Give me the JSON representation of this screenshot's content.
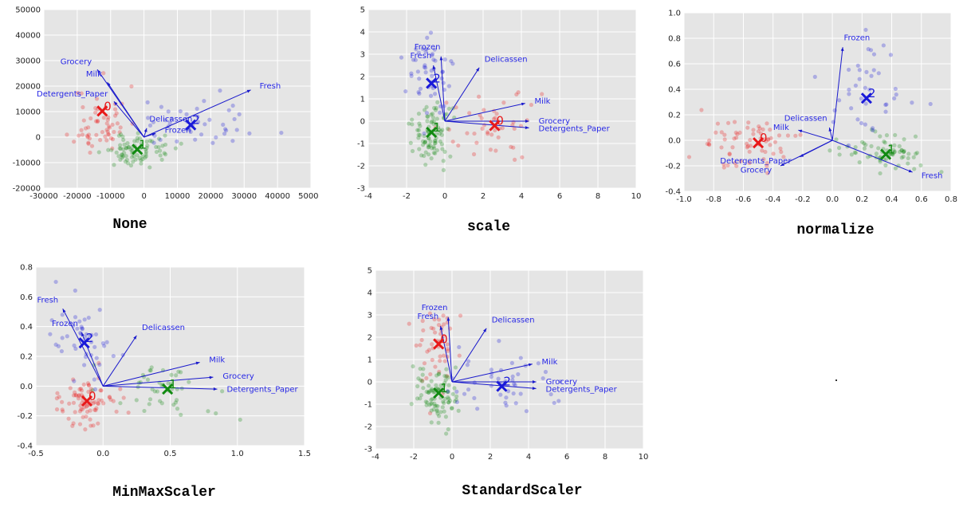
{
  "colors": {
    "cluster0": "#e8191a",
    "cluster1": "#118a11",
    "cluster2": "#1919d9",
    "arrow": "#1919cc",
    "plot_bg": "#e5e5e5"
  },
  "chart_data": [
    {
      "type": "scatter",
      "title": "None",
      "xlim": [
        -30000,
        50000
      ],
      "ylim": [
        -20000,
        50000
      ],
      "xticks": [
        -30000,
        -20000,
        -10000,
        0,
        10000,
        20000,
        30000,
        40000,
        50000
      ],
      "yticks": [
        -20000,
        -10000,
        0,
        10000,
        20000,
        30000,
        40000,
        50000
      ],
      "centers": [
        {
          "label": "0",
          "x": -12500,
          "y": 10200
        },
        {
          "label": "1",
          "x": -2000,
          "y": -4800
        },
        {
          "label": "2",
          "x": 14000,
          "y": 4800
        }
      ],
      "features": [
        {
          "name": "Grocery",
          "x": -14000,
          "y": 26500
        },
        {
          "name": "Milk",
          "x": -11000,
          "y": 21500
        },
        {
          "name": "Detergents_Paper",
          "x": -9000,
          "y": 14000
        },
        {
          "name": "Delicassen",
          "x": 800,
          "y": 3500
        },
        {
          "name": "Frozen",
          "x": 3500,
          "y": 1500
        },
        {
          "name": "Fresh",
          "x": 32000,
          "y": 18500
        }
      ],
      "clusters": [
        {
          "id": "0",
          "cx": -13000,
          "cy": 6000,
          "sx": 4000,
          "sy": 7000,
          "n": 60
        },
        {
          "id": "1",
          "cx": -2000,
          "cy": -5000,
          "sx": 5000,
          "sy": 3000,
          "n": 80
        },
        {
          "id": "2",
          "cx": 14000,
          "cy": 4000,
          "sx": 9000,
          "sy": 4500,
          "n": 45
        }
      ]
    },
    {
      "type": "scatter",
      "title": "scale",
      "xlim": [
        -4,
        10
      ],
      "ylim": [
        -3,
        5
      ],
      "xticks": [
        -4,
        -2,
        0,
        2,
        4,
        6,
        8,
        10
      ],
      "yticks": [
        -3,
        -2,
        -1,
        0,
        1,
        2,
        3,
        4,
        5
      ],
      "centers": [
        {
          "label": "0",
          "x": 2.6,
          "y": -0.2
        },
        {
          "label": "1",
          "x": -0.7,
          "y": -0.5
        },
        {
          "label": "2",
          "x": -0.7,
          "y": 1.7
        }
      ],
      "features": [
        {
          "name": "Fresh",
          "x": -0.6,
          "y": 2.5
        },
        {
          "name": "Frozen",
          "x": -0.2,
          "y": 2.9
        },
        {
          "name": "Delicassen",
          "x": 1.8,
          "y": 2.4
        },
        {
          "name": "Milk",
          "x": 4.2,
          "y": 0.8
        },
        {
          "name": "Grocery",
          "x": 4.4,
          "y": 0.0
        },
        {
          "name": "Detergents_Paper",
          "x": 4.4,
          "y": -0.3
        }
      ],
      "clusters": [
        {
          "id": "0",
          "cx": 2.5,
          "cy": -0.3,
          "sx": 1.4,
          "sy": 0.8,
          "n": 45
        },
        {
          "id": "1",
          "cx": -0.7,
          "cy": -0.6,
          "sx": 0.6,
          "sy": 0.6,
          "n": 90
        },
        {
          "id": "2",
          "cx": -0.8,
          "cy": 1.8,
          "sx": 0.6,
          "sy": 1.0,
          "n": 50
        }
      ]
    },
    {
      "type": "scatter",
      "title": "normalize",
      "xlim": [
        -1.0,
        0.8
      ],
      "ylim": [
        -0.4,
        1.0
      ],
      "xticks": [
        -1.0,
        -0.8,
        -0.6,
        -0.4,
        -0.2,
        0.0,
        0.2,
        0.4,
        0.6,
        0.8
      ],
      "yticks": [
        -0.4,
        -0.2,
        0.0,
        0.2,
        0.4,
        0.6,
        0.8,
        1.0
      ],
      "centers": [
        {
          "label": "0",
          "x": -0.5,
          "y": -0.02
        },
        {
          "label": "1",
          "x": 0.36,
          "y": -0.11
        },
        {
          "label": "2",
          "x": 0.23,
          "y": 0.33
        }
      ],
      "features": [
        {
          "name": "Frozen",
          "x": 0.07,
          "y": 0.73
        },
        {
          "name": "Milk",
          "x": -0.23,
          "y": 0.08
        },
        {
          "name": "Delicassen",
          "x": -0.02,
          "y": 0.1
        },
        {
          "name": "Grocery",
          "x": -0.35,
          "y": -0.2
        },
        {
          "name": "Detergents_Paper",
          "x": -0.22,
          "y": -0.13
        },
        {
          "name": "Fresh",
          "x": 0.54,
          "y": -0.25
        }
      ],
      "clusters": [
        {
          "id": "0",
          "cx": -0.55,
          "cy": -0.05,
          "sx": 0.15,
          "sy": 0.1,
          "n": 70
        },
        {
          "id": "1",
          "cx": 0.35,
          "cy": -0.1,
          "sx": 0.15,
          "sy": 0.07,
          "n": 70
        },
        {
          "id": "2",
          "cx": 0.22,
          "cy": 0.35,
          "sx": 0.17,
          "sy": 0.2,
          "n": 40
        }
      ]
    },
    {
      "type": "scatter",
      "title": "MinMaxScaler",
      "xlim": [
        -0.5,
        1.5
      ],
      "ylim": [
        -0.4,
        0.8
      ],
      "xticks": [
        -0.5,
        0.0,
        0.5,
        1.0,
        1.5
      ],
      "yticks": [
        -0.4,
        -0.2,
        0.0,
        0.2,
        0.4,
        0.6,
        0.8
      ],
      "centers": [
        {
          "label": "0",
          "x": -0.12,
          "y": -0.1
        },
        {
          "label": "1",
          "x": 0.48,
          "y": -0.02
        },
        {
          "label": "2",
          "x": -0.14,
          "y": 0.29
        }
      ],
      "features": [
        {
          "name": "Fresh",
          "x": -0.3,
          "y": 0.52
        },
        {
          "name": "Frozen",
          "x": -0.16,
          "y": 0.36
        },
        {
          "name": "Delicassen",
          "x": 0.25,
          "y": 0.34
        },
        {
          "name": "Milk",
          "x": 0.72,
          "y": 0.16
        },
        {
          "name": "Grocery",
          "x": 0.82,
          "y": 0.06
        },
        {
          "name": "Detergents_Paper",
          "x": 0.85,
          "y": -0.02
        }
      ],
      "clusters": [
        {
          "id": "0",
          "cx": -0.12,
          "cy": -0.1,
          "sx": 0.12,
          "sy": 0.1,
          "n": 80
        },
        {
          "id": "1",
          "cx": 0.45,
          "cy": -0.05,
          "sx": 0.2,
          "sy": 0.1,
          "n": 45
        },
        {
          "id": "2",
          "cx": -0.15,
          "cy": 0.32,
          "sx": 0.12,
          "sy": 0.15,
          "n": 45
        }
      ]
    },
    {
      "type": "scatter",
      "title": "StandardScaler",
      "xlim": [
        -4,
        10
      ],
      "ylim": [
        -3,
        5
      ],
      "xticks": [
        -4,
        -2,
        0,
        2,
        4,
        6,
        8,
        10
      ],
      "yticks": [
        -3,
        -2,
        -1,
        0,
        1,
        2,
        3,
        4,
        5
      ],
      "centers": [
        {
          "label": "0",
          "x": -0.7,
          "y": 1.7
        },
        {
          "label": "1",
          "x": -0.7,
          "y": -0.5
        },
        {
          "label": "2",
          "x": 2.6,
          "y": -0.2
        }
      ],
      "features": [
        {
          "name": "Fresh",
          "x": -0.6,
          "y": 2.5
        },
        {
          "name": "Frozen",
          "x": -0.2,
          "y": 2.9
        },
        {
          "name": "Delicassen",
          "x": 1.8,
          "y": 2.4
        },
        {
          "name": "Milk",
          "x": 4.2,
          "y": 0.8
        },
        {
          "name": "Grocery",
          "x": 4.4,
          "y": 0.0
        },
        {
          "name": "Detergents_Paper",
          "x": 4.4,
          "y": -0.3
        }
      ],
      "clusters": [
        {
          "id": "0",
          "cx": -0.8,
          "cy": 1.8,
          "sx": 0.6,
          "sy": 1.0,
          "n": 50
        },
        {
          "id": "1",
          "cx": -0.7,
          "cy": -0.6,
          "sx": 0.6,
          "sy": 0.6,
          "n": 90
        },
        {
          "id": "2",
          "cx": 2.5,
          "cy": -0.3,
          "sx": 1.4,
          "sy": 0.8,
          "n": 45
        }
      ]
    }
  ]
}
